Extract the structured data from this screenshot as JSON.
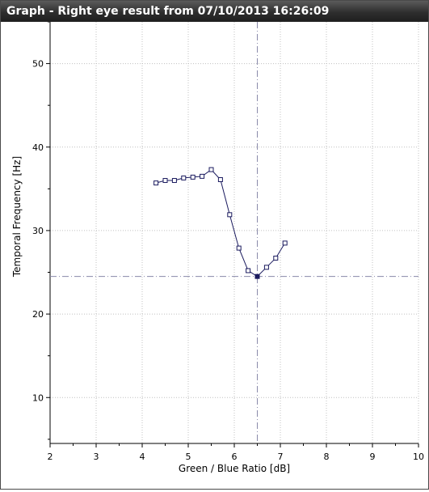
{
  "window": {
    "title": "Graph - Right eye result from 07/10/2013 16:26:09"
  },
  "colors": {
    "series": "#1a1a5e",
    "grid": "#c0c0c0",
    "crosshair": "#8a8aaa"
  },
  "chart_data": {
    "type": "line",
    "xlabel": "Green / Blue Ratio [dB]",
    "ylabel": "Temporal Frequency [Hz]",
    "xlim": [
      2,
      10
    ],
    "ylim": [
      4.5,
      55
    ],
    "x_ticks": [
      2,
      3,
      4,
      5,
      6,
      7,
      8,
      9,
      10
    ],
    "x_tick_labels": [
      "2",
      "3",
      "4",
      "5",
      "6",
      "7",
      "8",
      "9",
      "10"
    ],
    "y_ticks": [
      10,
      20,
      30,
      40,
      50
    ],
    "y_tick_labels": [
      "10",
      "20",
      "30",
      "40",
      "50"
    ],
    "grid": true,
    "series": [
      {
        "x": [
          4.3,
          4.5,
          4.7,
          4.9,
          5.1,
          5.3,
          5.5,
          5.7,
          5.9,
          6.1,
          6.3,
          6.5,
          6.7,
          6.9,
          7.1
        ],
        "y": [
          35.7,
          36.0,
          36.0,
          36.3,
          36.4,
          36.5,
          37.3,
          36.1,
          31.9,
          27.9,
          25.2,
          24.5,
          25.6,
          26.7,
          28.5
        ]
      }
    ],
    "marker": "open-square",
    "highlighted_point": {
      "x": 6.5,
      "y": 24.5
    },
    "crosshair": {
      "x": 6.5,
      "y": 24.5
    }
  }
}
